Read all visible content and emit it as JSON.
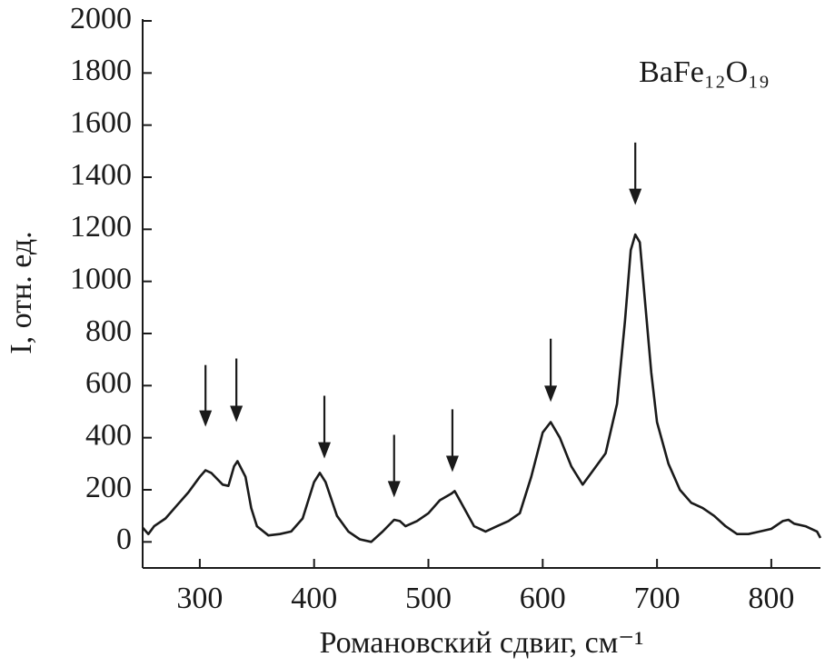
{
  "chart_data": {
    "type": "line",
    "annotation": "BaFe₁₂O₁₉",
    "x_label": "Романовский сдвиг, см⁻¹",
    "y_label": "I, отн. ед.",
    "xlim": [
      250,
      843
    ],
    "ylim": [
      -100,
      2000
    ],
    "xticks": [
      300,
      400,
      500,
      600,
      700,
      800
    ],
    "yticks": [
      0,
      200,
      400,
      600,
      800,
      1000,
      1200,
      1400,
      1600,
      1800,
      2000
    ],
    "series": [
      {
        "color": "#1a1a1a",
        "x": [
          250,
          255,
          260,
          270,
          280,
          290,
          300,
          305,
          310,
          320,
          325,
          330,
          333,
          340,
          345,
          350,
          360,
          370,
          380,
          390,
          400,
          405,
          410,
          420,
          430,
          440,
          450,
          460,
          470,
          475,
          480,
          490,
          500,
          510,
          520,
          523,
          530,
          540,
          550,
          560,
          570,
          580,
          590,
          600,
          607,
          615,
          625,
          635,
          645,
          655,
          665,
          672,
          677,
          681,
          685,
          690,
          695,
          700,
          710,
          720,
          730,
          740,
          750,
          760,
          770,
          780,
          790,
          800,
          810,
          815,
          820,
          830,
          840,
          843
        ],
        "values": [
          55,
          30,
          60,
          90,
          140,
          190,
          250,
          275,
          265,
          220,
          215,
          290,
          310,
          250,
          130,
          60,
          25,
          30,
          40,
          90,
          230,
          265,
          230,
          100,
          40,
          10,
          0,
          40,
          85,
          80,
          60,
          80,
          110,
          160,
          185,
          195,
          140,
          60,
          40,
          60,
          80,
          110,
          250,
          420,
          460,
          400,
          290,
          220,
          280,
          340,
          530,
          850,
          1120,
          1180,
          1150,
          900,
          650,
          460,
          300,
          200,
          150,
          130,
          100,
          60,
          30,
          30,
          40,
          50,
          80,
          85,
          70,
          60,
          40,
          15
        ]
      }
    ],
    "arrows": [
      {
        "x": 305,
        "from": 679,
        "to": 442
      },
      {
        "x": 332,
        "from": 704,
        "to": 460
      },
      {
        "x": 409,
        "from": 561,
        "to": 320
      },
      {
        "x": 470,
        "from": 411,
        "to": 171
      },
      {
        "x": 521,
        "from": 509,
        "to": 268
      },
      {
        "x": 607,
        "from": 780,
        "to": 537
      },
      {
        "x": 681,
        "from": 1533,
        "to": 1293
      }
    ]
  }
}
